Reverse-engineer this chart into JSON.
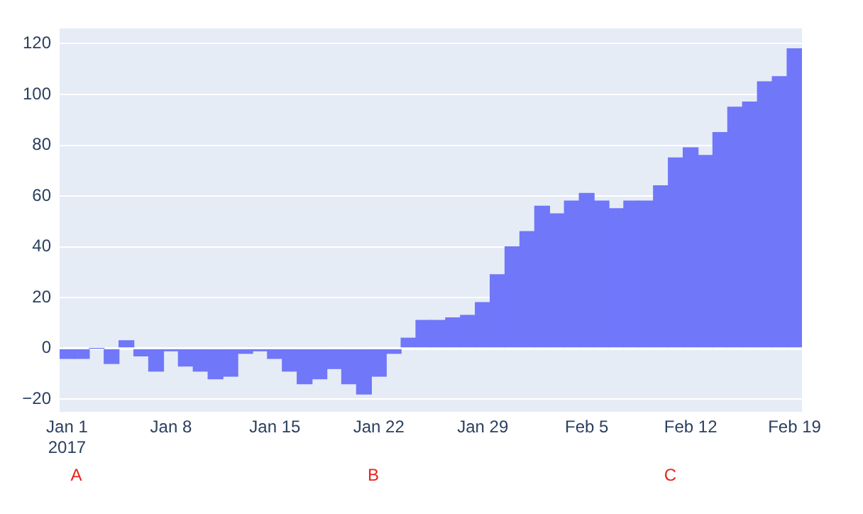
{
  "chart_data": {
    "type": "bar",
    "x": [
      "2017-01-01",
      "2017-01-02",
      "2017-01-03",
      "2017-01-04",
      "2017-01-05",
      "2017-01-06",
      "2017-01-07",
      "2017-01-08",
      "2017-01-09",
      "2017-01-10",
      "2017-01-11",
      "2017-01-12",
      "2017-01-13",
      "2017-01-14",
      "2017-01-15",
      "2017-01-16",
      "2017-01-17",
      "2017-01-18",
      "2017-01-19",
      "2017-01-20",
      "2017-01-21",
      "2017-01-22",
      "2017-01-23",
      "2017-01-24",
      "2017-01-25",
      "2017-01-26",
      "2017-01-27",
      "2017-01-28",
      "2017-01-29",
      "2017-01-30",
      "2017-01-31",
      "2017-02-01",
      "2017-02-02",
      "2017-02-03",
      "2017-02-04",
      "2017-02-05",
      "2017-02-06",
      "2017-02-07",
      "2017-02-08",
      "2017-02-09",
      "2017-02-10",
      "2017-02-11",
      "2017-02-12",
      "2017-02-13",
      "2017-02-14",
      "2017-02-15",
      "2017-02-16",
      "2017-02-17",
      "2017-02-18",
      "2017-02-19"
    ],
    "values": [
      -4,
      -4,
      0,
      -6,
      3,
      -3,
      -9,
      -1,
      -7,
      -9,
      -12,
      -11,
      -2,
      -1,
      -4,
      -9,
      -14,
      -12,
      -8,
      -14,
      -18,
      -11,
      -2,
      4,
      11,
      11,
      12,
      13,
      18,
      29,
      40,
      46,
      56,
      53,
      58,
      61,
      58,
      55,
      58,
      58,
      64,
      75,
      79,
      76,
      85,
      95,
      97,
      105,
      107,
      118
    ],
    "color": "#7077f9",
    "xlim": [
      "2016-12-31T12:00",
      "2017-02-19T12:00"
    ],
    "xticks": [
      {
        "value": "2017-01-01",
        "label": "Jan 1\n2017"
      },
      {
        "value": "2017-01-08",
        "label": "Jan 8"
      },
      {
        "value": "2017-01-15",
        "label": "Jan 15"
      },
      {
        "value": "2017-01-22",
        "label": "Jan 22"
      },
      {
        "value": "2017-01-29",
        "label": "Jan 29"
      },
      {
        "value": "2017-02-05",
        "label": "Feb 5"
      },
      {
        "value": "2017-02-12",
        "label": "Feb 12"
      },
      {
        "value": "2017-02-19",
        "label": "Feb 19"
      }
    ],
    "ylim": [
      -25,
      126
    ],
    "yticks": [
      -20,
      0,
      20,
      40,
      60,
      80,
      100,
      120
    ],
    "grid": "y",
    "legend": false,
    "annotations": [
      "A",
      "B",
      "C"
    ]
  }
}
